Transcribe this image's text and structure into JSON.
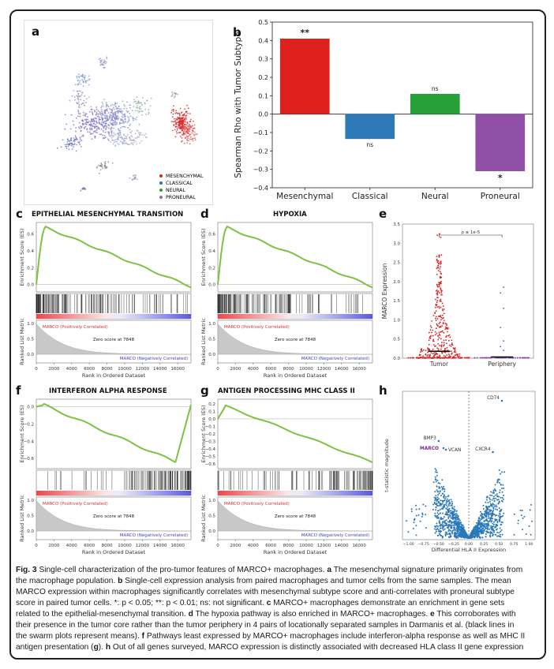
{
  "panel_a": {
    "label": "a",
    "legend": [
      {
        "name": "MESENCHYMAL",
        "color": "#d62728"
      },
      {
        "name": "CLASSICAL",
        "color": "#1f77b4"
      },
      {
        "name": "NEURAL",
        "color": "#2ca02c"
      },
      {
        "name": "PRONEURAL",
        "color": "#9467bd"
      }
    ]
  },
  "panel_b": {
    "label": "b",
    "chart_data": {
      "type": "bar",
      "categories": [
        "Mesenchymal",
        "Classical",
        "Neural",
        "Proneural"
      ],
      "values": [
        0.41,
        -0.135,
        0.11,
        -0.31
      ],
      "colors": [
        "#e0201d",
        "#2e7ab8",
        "#27a03a",
        "#9150a8"
      ],
      "significance": [
        "**",
        "ns",
        "ns",
        "*"
      ],
      "ylabel": "Spearman Rho with Tumor Subtype",
      "ylim": [
        -0.4,
        0.5
      ],
      "yticks": [
        "0.5",
        "0.4",
        "0.3",
        "0.2",
        "0.1",
        "0.0",
        "−0.1",
        "−0.2",
        "−0.3",
        "−0.4"
      ]
    }
  },
  "gsea_common": {
    "ylabel_es": "Enrichment Score (ES)",
    "ylabel_rank": "Ranked List Metric",
    "xlabel": "Rank in Ordered Dataset",
    "pos_label": "MARCO (Positively Correlated)",
    "neg_label": "MARCO (Negatively Correlated)",
    "zero_label": "Zero score at 7848",
    "xticks": [
      "0",
      "2000",
      "4000",
      "6000",
      "8000",
      "10000",
      "12000",
      "14000",
      "16000"
    ],
    "rank_yticks": [
      "1.0",
      "0.5",
      "0.0"
    ]
  },
  "panel_c": {
    "label": "c",
    "title": "EPITHELIAL MESENCHYMAL TRANSITION",
    "yticks": [
      "0.6",
      "0.4",
      "0.2",
      "0.0"
    ]
  },
  "panel_d": {
    "label": "d",
    "title": "HYPOXIA",
    "yticks": [
      "0.6",
      "0.4",
      "0.2",
      "0.0"
    ]
  },
  "panel_f": {
    "label": "f",
    "title": "INTERFERON ALPHA RESPONSE",
    "yticks": [
      "0.0",
      "−0.2",
      "−0.4",
      "−0.6"
    ]
  },
  "panel_g": {
    "label": "g",
    "title": "ANTIGEN PROCESSING MHC CLASS II",
    "yticks": [
      "0.2",
      "0.1",
      "0.0",
      "−0.1",
      "−0.2",
      "−0.3",
      "−0.4",
      "−0.5",
      "−0.6"
    ]
  },
  "panel_e": {
    "label": "e",
    "ylabel": "MARCO Expression",
    "pvalue": "p ≤ 1e-5",
    "categories": [
      "Tumor",
      "Periphery"
    ],
    "means": [
      0.18,
      0.03
    ],
    "yticks": [
      "3.5",
      "3.0",
      "2.5",
      "2.0",
      "1.5",
      "1.0",
      "0.5",
      "0.0"
    ],
    "ylim": [
      0,
      3.5
    ]
  },
  "panel_h": {
    "label": "h",
    "xlabel": "Differential HLA II Expression",
    "ylabel": "t-statistic magnitude",
    "xticks": [
      "−1.00",
      "−0.75",
      "−0.50",
      "−0.25",
      "0.00",
      "0.25",
      "0.50",
      "0.75",
      "1.00"
    ],
    "genes": [
      "CD74",
      "BMP3",
      "MARCO",
      "VCAN",
      "CXCR4"
    ]
  },
  "caption": {
    "fig_label": "Fig. 3",
    "text_1": " Single-cell characterization of the pro-tumor features of MARCO+ macrophages. ",
    "a": "a",
    "text_a": " The mesenchymal signature primarily originates from the macrophage population. ",
    "b": "b",
    "text_b": " Single-cell expression analysis from paired macrophages and tumor cells from the same samples. The mean MARCO expression within macrophages significantly correlates with mesenchymal subtype score and anti-correlates with proneural subtype score in paired tumor cells. *: p < 0.05; **: p < 0.01; ns: not significant. ",
    "c": "c",
    "text_c": " MARCO+ macrophages demonstrate an enrichment in gene sets related to the epithelial-mesenchymal transition. ",
    "d": "d",
    "text_d": " The hypoxia pathway is also enriched in MARCO+ macrophages. ",
    "e": "e",
    "text_e": " This corroborates with their presence in the tumor core rather than the tumor periphery in 4 pairs of locationally separated samples in Darmanis et al. (black lines in the swarm plots represent means). ",
    "f": "f",
    "text_f": " Pathways least expressed by MARCO+ macrophages include interferon-alpha response as well as MHC II antigen presentation (",
    "g": "g",
    "text_g": "). ",
    "h": "h",
    "text_h": " Out of all genes surveyed, MARCO expression is distinctly associated with decreased HLA class II gene expression"
  }
}
